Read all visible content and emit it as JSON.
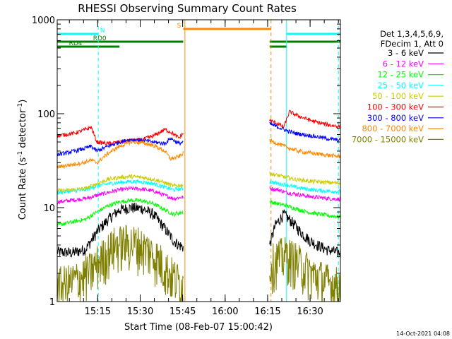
{
  "chart_data": {
    "type": "line",
    "title": "RHESSI Observing Summary Count Rates",
    "xlabel": "Start Time (08-Feb-07 15:00:42)",
    "ylabel_main": "Count Rate (s",
    "ylabel_sup1": "-1",
    "ylabel_mid": " detector",
    "ylabel_sup2": "-1",
    "ylabel_end": ")",
    "y_scale": "log",
    "ylim": [
      1,
      1000
    ],
    "xlim_minutes": [
      0,
      100
    ],
    "x_ticks": [
      {
        "label": "15:15",
        "minute": 14.3
      },
      {
        "label": "15:30",
        "minute": 29.3
      },
      {
        "label": "15:45",
        "minute": 44.3
      },
      {
        "label": "16:00",
        "minute": 59.3
      },
      {
        "label": "16:15",
        "minute": 74.3
      },
      {
        "label": "16:30",
        "minute": 89.3
      }
    ],
    "y_ticks": [
      {
        "label": "1",
        "value": 1
      },
      {
        "label": "10",
        "value": 10
      },
      {
        "label": "100",
        "value": 100
      },
      {
        "label": "1000",
        "value": 1000
      }
    ],
    "legend_position": "right",
    "legend_header": [
      "Det 1,3,4,5,6,9,",
      "FDecim 1, Att 0"
    ],
    "data_gap_minutes": [
      44.5,
      75.0
    ],
    "series": [
      {
        "name": "3 - 6 keV",
        "color": "#000000",
        "segments": [
          {
            "x": [
              0,
              5,
              10,
              14,
              18,
              22,
              26,
              30,
              34,
              38,
              41,
              43,
              44.5
            ],
            "y": [
              3.4,
              3.3,
              3.6,
              5.5,
              7.5,
              9.5,
              10.0,
              9.8,
              8.5,
              6.0,
              4.5,
              4.0,
              3.8
            ]
          },
          {
            "x": [
              75,
              77,
              80,
              83,
              86,
              89,
              92,
              95,
              98,
              100
            ],
            "y": [
              4.0,
              6.5,
              8.5,
              7.0,
              5.5,
              4.5,
              4.0,
              3.6,
              3.4,
              3.3
            ]
          }
        ]
      },
      {
        "name": "6 - 12 keV",
        "color": "#ff00ff",
        "segments": [
          {
            "x": [
              0,
              5,
              10,
              14,
              18,
              22,
              26,
              30,
              34,
              38,
              41,
              44.5
            ],
            "y": [
              11.5,
              12,
              12.5,
              13.5,
              14.5,
              15.5,
              16,
              15.8,
              15,
              13.5,
              12.5,
              13
            ]
          },
          {
            "x": [
              75,
              78,
              81,
              84,
              87,
              90,
              93,
              96,
              100
            ],
            "y": [
              16,
              15.5,
              14.5,
              14,
              13.5,
              13,
              12.8,
              12.5,
              12.3
            ]
          }
        ]
      },
      {
        "name": "12 - 25 keV",
        "color": "#00ff00",
        "segments": [
          {
            "x": [
              0,
              5,
              10,
              14,
              18,
              22,
              26,
              30,
              34,
              38,
              41,
              44.5
            ],
            "y": [
              6.5,
              7,
              7.5,
              9,
              10.5,
              11.5,
              12,
              11.8,
              11,
              9.5,
              8.5,
              9
            ]
          },
          {
            "x": [
              75,
              78,
              81,
              84,
              87,
              90,
              93,
              96,
              100
            ],
            "y": [
              11.5,
              11,
              10.5,
              9.8,
              9.2,
              8.8,
              8.5,
              8.2,
              8.0
            ]
          }
        ]
      },
      {
        "name": "25 - 50 keV",
        "color": "#00ffff",
        "segments": [
          {
            "x": [
              0,
              5,
              10,
              14,
              18,
              22,
              26,
              30,
              34,
              38,
              41,
              44.5
            ],
            "y": [
              14.5,
              15,
              15.5,
              17,
              18,
              18.5,
              19,
              18.8,
              18,
              16.5,
              15.5,
              16
            ]
          },
          {
            "x": [
              75,
              78,
              81,
              84,
              87,
              90,
              93,
              96,
              100
            ],
            "y": [
              19,
              18,
              17.5,
              16.5,
              16,
              15.5,
              15.2,
              15,
              14.8
            ]
          }
        ]
      },
      {
        "name": "50 - 100 keV",
        "color": "#cccc00",
        "segments": [
          {
            "x": [
              0,
              5,
              10,
              14,
              18,
              22,
              26,
              30,
              34,
              38,
              41,
              44.5
            ],
            "y": [
              15,
              15.5,
              16,
              18,
              20,
              21,
              21.5,
              21,
              20,
              18.5,
              17,
              17.5
            ]
          },
          {
            "x": [
              75,
              78,
              81,
              84,
              87,
              90,
              93,
              96,
              100
            ],
            "y": [
              23,
              22,
              21,
              20,
              19.5,
              19,
              18.8,
              18.5,
              18.2
            ]
          }
        ]
      },
      {
        "name": "100 - 300 keV",
        "color": "#ff0000",
        "segments": [
          {
            "x": [
              0,
              3,
              6,
              9,
              12,
              14,
              18,
              22,
              26,
              30,
              34,
              38,
              40,
              43,
              44.5
            ],
            "y": [
              58,
              60,
              62,
              66,
              72,
              50,
              48,
              50,
              52,
              53,
              58,
              68,
              64,
              55,
              62
            ]
          },
          {
            "x": [
              75,
              78,
              80,
              82,
              85,
              88,
              91,
              94,
              97,
              100
            ],
            "y": [
              85,
              78,
              72,
              105,
              95,
              88,
              82,
              78,
              75,
              73
            ]
          }
        ]
      },
      {
        "name": "300 - 800 keV",
        "color": "#0000ff",
        "segments": [
          {
            "x": [
              0,
              3,
              6,
              9,
              12,
              14,
              18,
              22,
              26,
              30,
              34,
              38,
              40,
              43,
              44.5
            ],
            "y": [
              37,
              38,
              40,
              42,
              45,
              40,
              45,
              50,
              53,
              52,
              50,
              48,
              55,
              48,
              50
            ]
          },
          {
            "x": [
              75,
              78,
              81,
              84,
              87,
              90,
              93,
              96,
              100
            ],
            "y": [
              78,
              72,
              66,
              62,
              60,
              58,
              56,
              54,
              52
            ]
          }
        ]
      },
      {
        "name": "800 - 7000 keV",
        "color": "#ff8800",
        "segments": [
          {
            "x": [
              0,
              3,
              6,
              9,
              12,
              14,
              18,
              22,
              26,
              30,
              34,
              38,
              40,
              43,
              44.5
            ],
            "y": [
              27,
              28,
              29,
              30,
              32,
              30,
              38,
              45,
              50,
              49,
              46,
              40,
              33,
              35,
              38
            ]
          },
          {
            "x": [
              75,
              78,
              81,
              84,
              87,
              90,
              93,
              96,
              100
            ],
            "y": [
              52,
              48,
              44,
              41,
              39,
              38,
              37,
              36,
              35
            ]
          }
        ]
      },
      {
        "name": "7000 - 15000 keV",
        "color": "#808000",
        "segments": [
          {
            "x": [
              0,
              4,
              8,
              12,
              16,
              20,
              24,
              28,
              32,
              36,
              40,
              44.5
            ],
            "y": [
              1.5,
              1.6,
              1.8,
              2.2,
              3.0,
              4.0,
              4.3,
              4.2,
              3.6,
              2.8,
              2.0,
              1.5
            ]
          },
          {
            "x": [
              75,
              78,
              81,
              84,
              87,
              90,
              93,
              96,
              100
            ],
            "y": [
              2.5,
              3.0,
              3.2,
              2.8,
              2.4,
              2.0,
              1.8,
              1.6,
              1.5
            ]
          }
        ]
      }
    ],
    "status_bars": [
      {
        "label": "N",
        "color": "#00ffff",
        "level": 1,
        "label_minute": 16,
        "segments": [
          [
            0,
            14.5
          ],
          [
            81,
            100
          ]
        ]
      },
      {
        "label": "S",
        "color": "#ff8800",
        "level": 2,
        "label_minute": 43,
        "segments": [
          [
            44.5,
            75.5
          ]
        ]
      },
      {
        "label": "RD0",
        "color": "#008000",
        "level": 3,
        "label_minute": 15,
        "segments": [
          [
            0,
            44.5
          ],
          [
            75,
            100
          ]
        ]
      },
      {
        "label": "RD4",
        "color": "#008000",
        "level": 4,
        "label_minute": 6.5,
        "segments": [
          [
            0,
            22
          ],
          [
            75,
            81
          ]
        ]
      }
    ],
    "markers": [
      {
        "minute": 14.5,
        "color": "#00ffff",
        "dash": true
      },
      {
        "minute": 45.1,
        "color": "#ff8800",
        "dash": false
      },
      {
        "minute": 75.5,
        "color": "#ff8800",
        "dash": true
      },
      {
        "minute": 81.0,
        "color": "#00ffff",
        "dash": false
      },
      {
        "minute": 99.3,
        "color": "#00ffff",
        "dash": true
      }
    ],
    "footer_date": "14-Oct-2021 04:08"
  }
}
